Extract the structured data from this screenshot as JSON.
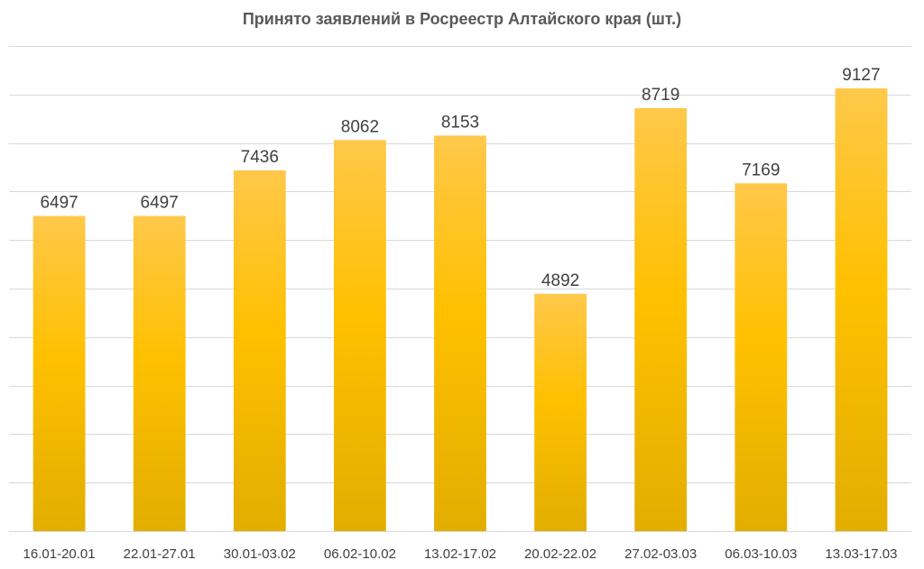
{
  "chart_data": {
    "type": "bar",
    "title": "Принято заявлений в Росреестр Алтайского края (шт.)",
    "xlabel": "",
    "ylabel": "",
    "categories": [
      "16.01-20.01",
      "22.01-27.01",
      "30.01-03.02",
      "06.02-10.02",
      "13.02-17.02",
      "20.02-22.02",
      "27.02-03.03",
      "06.03-10.03",
      "13.03-17.03"
    ],
    "values": [
      6497,
      6497,
      7436,
      8062,
      8153,
      4892,
      8719,
      7169,
      9127
    ],
    "ylim": [
      0,
      10000
    ],
    "grid": true,
    "legend": "none",
    "data_labels": true,
    "bar_color": "#FFC000"
  }
}
